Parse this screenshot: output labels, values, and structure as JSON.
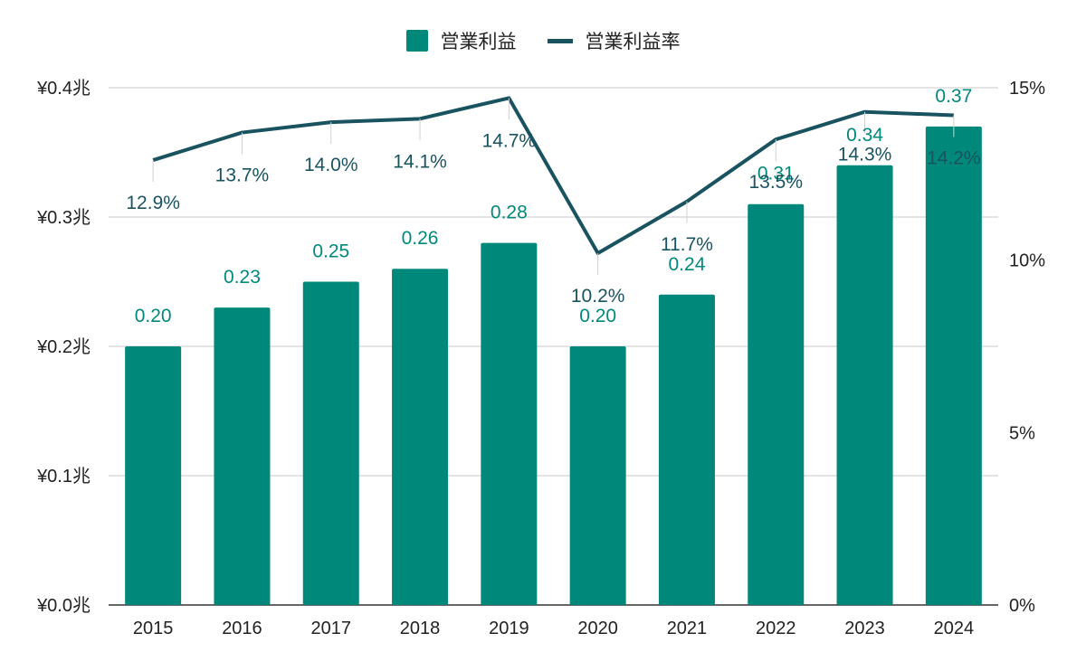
{
  "chart_data": {
    "type": "bar+line",
    "categories": [
      "2015",
      "2016",
      "2017",
      "2018",
      "2019",
      "2020",
      "2021",
      "2022",
      "2023",
      "2024"
    ],
    "series": [
      {
        "name": "営業利益",
        "kind": "bar",
        "axis": "left",
        "values": [
          0.2,
          0.23,
          0.25,
          0.26,
          0.28,
          0.2,
          0.24,
          0.31,
          0.34,
          0.37
        ],
        "labels": [
          "0.20",
          "0.23",
          "0.25",
          "0.26",
          "0.28",
          "0.20",
          "0.24",
          "0.31",
          "0.34",
          "0.37"
        ],
        "color": "#00897b"
      },
      {
        "name": "営業利益率",
        "kind": "line",
        "axis": "right",
        "values": [
          12.9,
          13.7,
          14.0,
          14.1,
          14.7,
          10.2,
          11.7,
          13.5,
          14.3,
          14.2
        ],
        "labels": [
          "12.9%",
          "13.7%",
          "14.0%",
          "14.1%",
          "14.7%",
          "10.2%",
          "11.7%",
          "13.5%",
          "14.3%",
          "14.2%"
        ],
        "color": "#1a5360"
      }
    ],
    "y_left": {
      "min": 0,
      "max": 0.4,
      "ticks": [
        "¥0.0兆",
        "¥0.1兆",
        "¥0.2兆",
        "¥0.3兆",
        "¥0.4兆"
      ]
    },
    "y_right": {
      "min": 0,
      "max": 15,
      "ticks": [
        "0%",
        "5%",
        "10%",
        "15%"
      ]
    },
    "grid": true,
    "legend_position": "top-center"
  }
}
